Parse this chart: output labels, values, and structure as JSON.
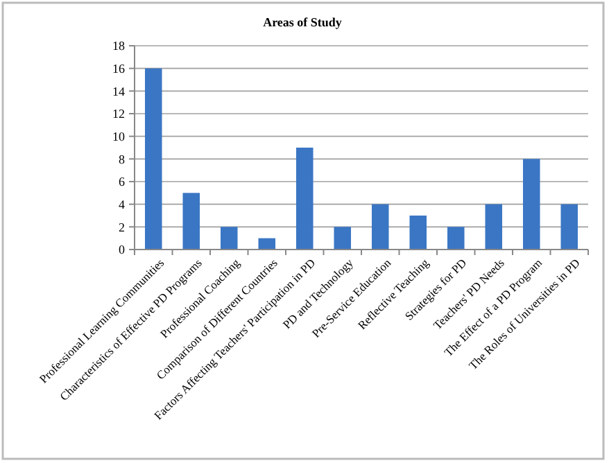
{
  "chart_data": {
    "type": "bar",
    "title": "Areas of Study",
    "categories": [
      "Professional Learning Communities",
      "Characteristics of Effective PD Programs",
      "Professional Coaching",
      "Comparison of Different Countries",
      "Factors Affecting Teachers' Participation in PD",
      "PD and Technology",
      "Pre-Service Education",
      "Reflective Teaching",
      "Strategies for PD",
      "Teachers' PD Needs",
      "The Effect of a PD Program",
      "The Roles of Universities in PD"
    ],
    "values": [
      16,
      5,
      2,
      1,
      9,
      2,
      4,
      3,
      2,
      4,
      8,
      4
    ],
    "color": "#3a76c4",
    "ylim": [
      0,
      18
    ],
    "yticks": [
      0,
      2,
      4,
      6,
      8,
      10,
      12,
      14,
      16,
      18
    ],
    "grid": "y"
  }
}
